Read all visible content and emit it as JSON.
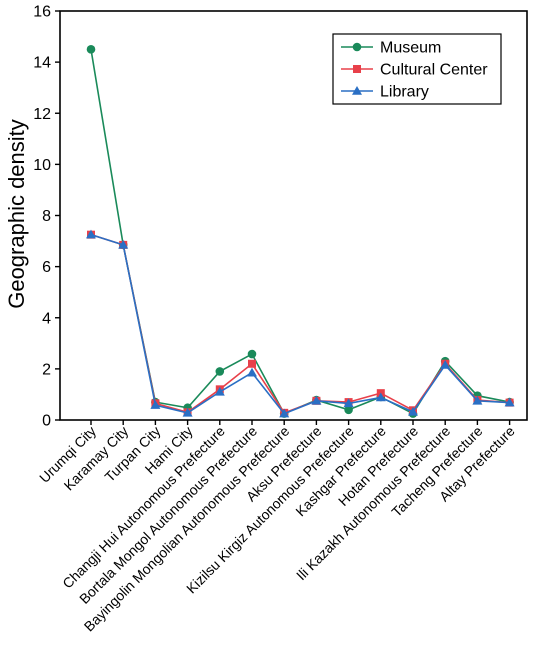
{
  "chart_data": {
    "type": "line",
    "title": "",
    "xlabel": "",
    "ylabel": "Geographic density",
    "ylim": [
      0,
      16
    ],
    "yticks": [
      0,
      2,
      4,
      6,
      8,
      10,
      12,
      14,
      16
    ],
    "grid": false,
    "legend_position": "top-right",
    "categories": [
      "Urumqi City",
      "Karamay City",
      "Turpan City",
      "Hami City",
      "Changji Hui Autonomous Prefecture",
      "Bortala Mongol Autonomous Prefecture",
      "Bayingolin Mongolian Autonomous Prefecture",
      "Aksu Prefecture",
      "Kizilsu Kirgiz Autonomous Prefecture",
      "Kashgar Prefecture",
      "Hotan Prefecture",
      "Ili Kazakh Autonomous Prefecture",
      "Tacheng Prefecture",
      "Altay Prefecture"
    ],
    "series": [
      {
        "name": "Museum",
        "color": "#1a8a5a",
        "marker": "circle",
        "values": [
          14.5,
          6.85,
          0.7,
          0.48,
          1.9,
          2.58,
          0.25,
          0.78,
          0.4,
          0.9,
          0.25,
          2.3,
          0.95,
          0.7
        ]
      },
      {
        "name": "Cultural Center",
        "color": "#e8404a",
        "marker": "square",
        "values": [
          7.25,
          6.85,
          0.65,
          0.3,
          1.2,
          2.2,
          0.28,
          0.75,
          0.7,
          1.05,
          0.38,
          2.2,
          0.78,
          0.68
        ]
      },
      {
        "name": "Library",
        "color": "#2a6fc4",
        "marker": "triangle",
        "values": [
          7.25,
          6.85,
          0.58,
          0.28,
          1.1,
          1.85,
          0.25,
          0.75,
          0.65,
          0.88,
          0.32,
          2.15,
          0.75,
          0.68
        ]
      }
    ]
  }
}
